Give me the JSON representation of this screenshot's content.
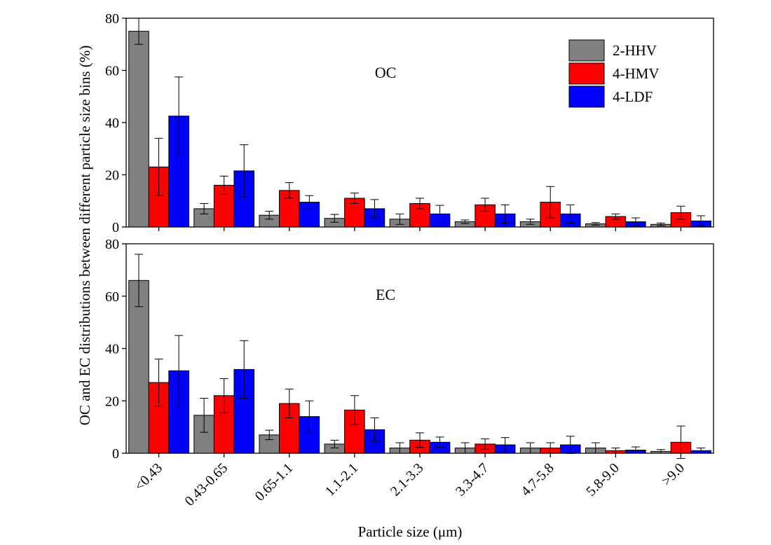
{
  "chart_data": [
    {
      "type": "bar",
      "title": "OC",
      "y_label": "OC and EC distributions between different particle size bins (%)",
      "categories": [
        null,
        null,
        null,
        null,
        null,
        null,
        null,
        null,
        null
      ],
      "ylim": [
        0,
        80
      ],
      "yticks": [
        0,
        20,
        40,
        60,
        80
      ],
      "legend": "upper right",
      "series": [
        {
          "name": "2-HHV",
          "color": "#808080",
          "values": [
            75,
            7,
            4.5,
            3.3,
            3,
            2,
            2,
            1.2,
            1
          ],
          "errors": [
            5,
            2,
            1.5,
            1.5,
            2,
            0.7,
            1,
            0.5,
            0.5
          ]
        },
        {
          "name": "4-HMV",
          "color": "#ff0000",
          "values": [
            23,
            16,
            14,
            11,
            9,
            8.5,
            9.5,
            4,
            5.5
          ],
          "errors": [
            11,
            3.5,
            3,
            2,
            2,
            2.5,
            6,
            1,
            2.5
          ]
        },
        {
          "name": "4-LDF",
          "color": "#0000ff",
          "values": [
            42.5,
            21.5,
            9.5,
            7,
            5,
            5,
            5,
            2,
            2.3
          ],
          "errors": [
            15,
            10,
            2.5,
            3.5,
            3.3,
            3.5,
            3.5,
            1.5,
            2
          ]
        }
      ]
    },
    {
      "type": "bar",
      "title": "EC",
      "x_label": "Particle size (μm)",
      "categories": [
        "<0.43",
        "0.43-0.65",
        "0.65-1.1",
        "1.1-2.1",
        "2.1-3.3",
        "3.3-4.7",
        "4.7-5.8",
        "5.8-9.0",
        ">9.0"
      ],
      "ylim": [
        0,
        80
      ],
      "yticks": [
        0,
        20,
        40,
        60,
        80
      ],
      "series": [
        {
          "color": "#808080",
          "values": [
            66,
            14.5,
            7,
            3.5,
            2,
            2,
            2,
            2,
            0.7
          ],
          "errors": [
            10,
            6.5,
            1.8,
            1.5,
            2,
            2,
            2,
            2,
            0.7
          ]
        },
        {
          "color": "#ff0000",
          "values": [
            27,
            22,
            19,
            16.5,
            5,
            3.5,
            2,
            1,
            4.2
          ],
          "errors": [
            9,
            6.5,
            5.5,
            5.5,
            2.8,
            2,
            2,
            1,
            6.2
          ]
        },
        {
          "color": "#0000ff",
          "values": [
            31.5,
            32,
            14,
            9,
            4.2,
            3.2,
            3.2,
            1.2,
            1
          ],
          "errors": [
            13.5,
            11,
            6,
            4.5,
            2,
            2.8,
            3.3,
            1.2,
            1
          ]
        }
      ]
    }
  ]
}
